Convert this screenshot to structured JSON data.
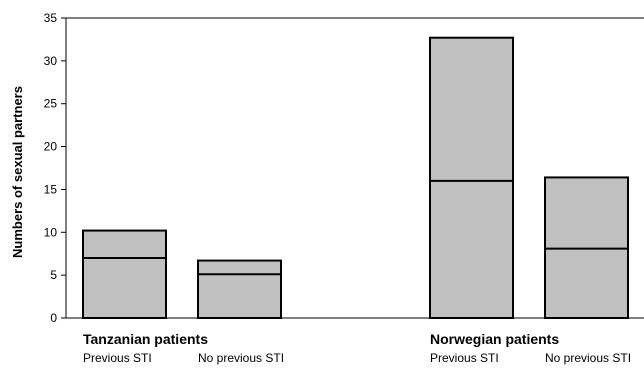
{
  "chart_data": {
    "type": "bar",
    "ylabel": "Numbers of sexual partners",
    "ylim": [
      0,
      35
    ],
    "yticks": [
      0,
      5,
      10,
      15,
      20,
      25,
      30,
      35
    ],
    "grid": false,
    "groups": [
      {
        "label": "Tanzanian patients",
        "bars": [
          {
            "category": "Previous STI",
            "value": 10.2,
            "median": 7.0
          },
          {
            "category": "No previous STI",
            "value": 6.7,
            "median": 5.1
          }
        ]
      },
      {
        "label": "Norwegian patients",
        "bars": [
          {
            "category": "Previous STI",
            "value": 32.7,
            "median": 16.0
          },
          {
            "category": "No previous STI",
            "value": 16.4,
            "median": 8.1
          }
        ]
      }
    ],
    "bar_color": "#c0c0c0"
  }
}
